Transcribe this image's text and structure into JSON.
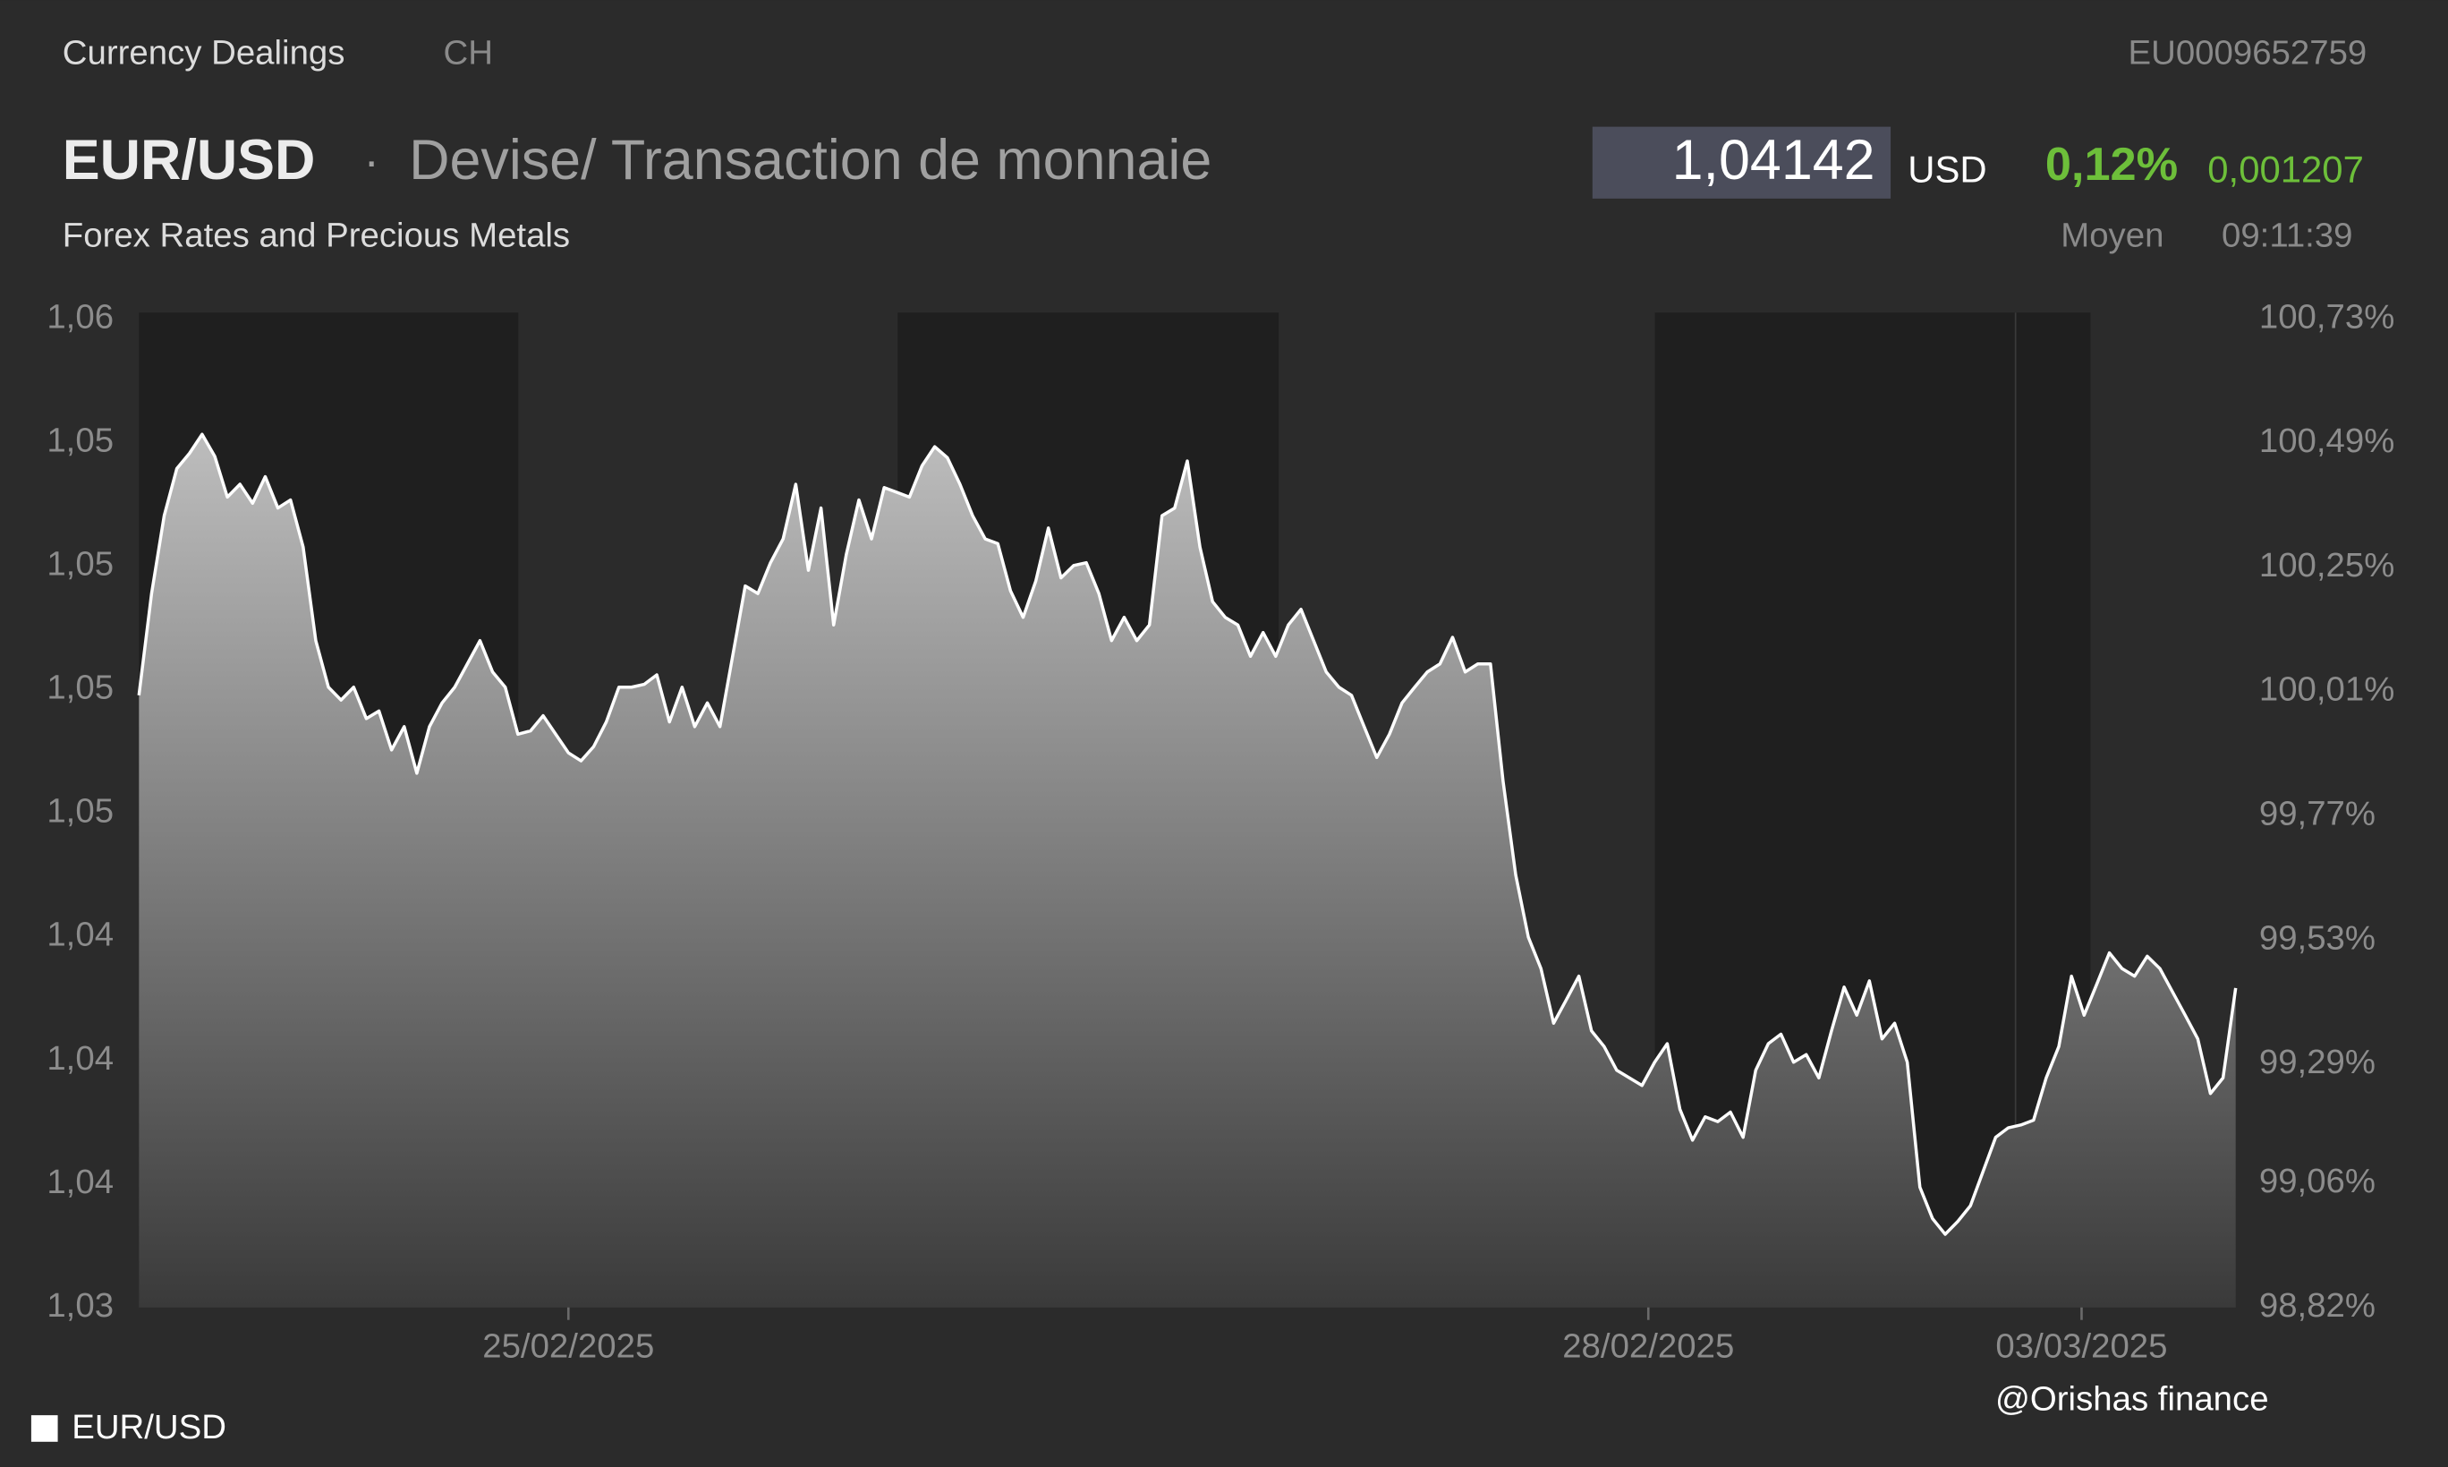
{
  "header": {
    "source": "Currency Dealings",
    "country": "CH",
    "isin": "EU0009652759",
    "symbol": "EUR/USD",
    "separator": "·",
    "name": "Devise/ Transaction de monnaie",
    "subtitle": "Forex Rates and Precious Metals",
    "price": "1,04142",
    "currency": "USD",
    "change_pct": "0,12%",
    "change": "0,001207",
    "price_type": "Moyen",
    "time": "09:11:39"
  },
  "watermark": "@Orishas finance",
  "chart_data": {
    "type": "area",
    "series": [
      {
        "name": "EUR/USD",
        "color": "#ffffff",
        "values": [
          1.04758,
          1.04972,
          1.05136,
          1.05235,
          1.05267,
          1.05307,
          1.05261,
          1.05175,
          1.05202,
          1.05162,
          1.05218,
          1.05152,
          1.05169,
          1.0507,
          1.04873,
          1.04775,
          1.04748,
          1.04775,
          1.04709,
          1.04725,
          1.04643,
          1.04692,
          1.04594,
          1.04692,
          1.04742,
          1.04775,
          1.04824,
          1.04873,
          1.04807,
          1.04775,
          1.04676,
          1.04683,
          1.04715,
          1.04676,
          1.04637,
          1.0462,
          1.0465,
          1.04702,
          1.04775,
          1.04775,
          1.04781,
          1.04801,
          1.04702,
          1.04775,
          1.04692,
          1.04742,
          1.04692,
          1.0484,
          1.04988,
          1.04972,
          1.05037,
          1.05087,
          1.05202,
          1.05021,
          1.05152,
          1.04906,
          1.05054,
          1.05169,
          1.05087,
          1.05195,
          1.05185,
          1.05175,
          1.05241,
          1.05281,
          1.05258,
          1.05202,
          1.05136,
          1.05087,
          1.05077,
          1.04978,
          1.04922,
          1.04998,
          1.0511,
          1.05005,
          1.05031,
          1.05037,
          1.04972,
          1.04873,
          1.04922,
          1.04873,
          1.04906,
          1.05136,
          1.05152,
          1.05251,
          1.0507,
          1.04955,
          1.04922,
          1.04906,
          1.0484,
          1.0489,
          1.0484,
          1.04906,
          1.04939,
          1.04873,
          1.04807,
          1.04775,
          1.04758,
          1.04692,
          1.04627,
          1.04676,
          1.04742,
          1.04775,
          1.04807,
          1.04824,
          1.0488,
          1.04807,
          1.04824,
          1.04824,
          1.04577,
          1.0438,
          1.04249,
          1.04183,
          1.04068,
          1.04117,
          1.04167,
          1.04052,
          1.04019,
          1.03969,
          1.03953,
          1.03937,
          1.03986,
          1.04025,
          1.03887,
          1.03822,
          1.03871,
          1.03861,
          1.03881,
          1.03828,
          1.03969,
          1.04025,
          1.04045,
          1.03986,
          1.04002,
          1.03953,
          1.04052,
          1.04144,
          1.04085,
          1.04157,
          1.04035,
          1.04068,
          1.03986,
          1.03723,
          1.03657,
          1.03624,
          1.03651,
          1.03684,
          1.03756,
          1.03828,
          1.03848,
          1.03854,
          1.03864,
          1.03953,
          1.04019,
          1.04167,
          1.04085,
          1.0415,
          1.04216,
          1.04183,
          1.04167,
          1.04209,
          1.04183,
          1.04134,
          1.04085,
          1.04035,
          1.0392,
          1.03953,
          1.04142
        ]
      }
    ],
    "xlim": [
      0,
      166
    ],
    "xticks": [
      {
        "value": 34,
        "label": "25/02/2025"
      },
      {
        "value": 119.5,
        "label": "28/02/2025"
      },
      {
        "value": 153.8,
        "label": "03/03/2025"
      }
    ],
    "ylim": [
      1.0347,
      1.0555
    ],
    "yticks": [
      {
        "value": 1.0347,
        "label": "1,03"
      },
      {
        "value": 1.0373,
        "label": "1,04"
      },
      {
        "value": 1.0399,
        "label": "1,04"
      },
      {
        "value": 1.0425,
        "label": "1,04"
      },
      {
        "value": 1.0451,
        "label": "1,05"
      },
      {
        "value": 1.0477,
        "label": "1,05"
      },
      {
        "value": 1.0503,
        "label": "1,05"
      },
      {
        "value": 1.0529,
        "label": "1,05"
      },
      {
        "value": 1.0555,
        "label": "1,06"
      }
    ],
    "y2lim": [
      98.82,
      100.73
    ],
    "y2ticks": [
      {
        "value": 98.82,
        "label": "98,82%"
      },
      {
        "value": 99.06,
        "label": "99,06%"
      },
      {
        "value": 99.29,
        "label": "99,29%"
      },
      {
        "value": 99.53,
        "label": "99,53%"
      },
      {
        "value": 99.77,
        "label": "99,77%"
      },
      {
        "value": 100.01,
        "label": "100,01%"
      },
      {
        "value": 100.25,
        "label": "100,25%"
      },
      {
        "value": 100.49,
        "label": "100,49%"
      },
      {
        "value": 100.73,
        "label": "100,73%"
      }
    ],
    "legend": "bottom-left"
  }
}
